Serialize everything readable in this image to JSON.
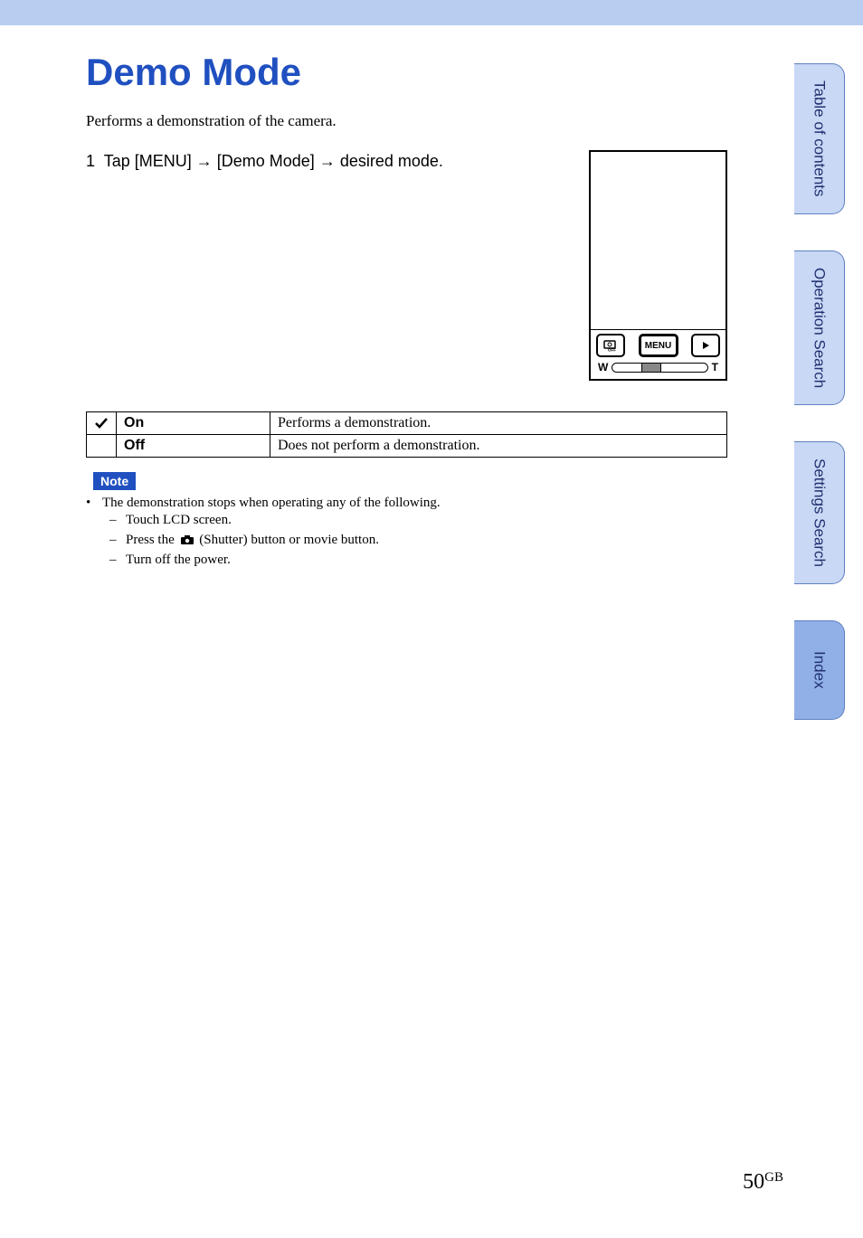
{
  "title": "Demo Mode",
  "intro": "Performs a demonstration of the camera.",
  "step": {
    "num": "1",
    "prefix": "Tap [MENU]",
    "mid": "[Demo Mode]",
    "suffix": "desired mode."
  },
  "camera": {
    "menu_label": "MENU",
    "zoom_w": "W",
    "zoom_t": "T"
  },
  "options": [
    {
      "checked": true,
      "name": "On",
      "desc": "Performs a demonstration."
    },
    {
      "checked": false,
      "name": "Off",
      "desc": "Does not perform a demonstration."
    }
  ],
  "note": {
    "label": "Note",
    "bullet": "The demonstration stops when operating any of the following.",
    "subs": [
      "Touch LCD screen.",
      "Press the |CAM| (Shutter) button or movie button.",
      "Turn off the power."
    ]
  },
  "tabs": {
    "toc": "Table of contents",
    "op": "Operation Search",
    "settings": "Settings Search",
    "index": "Index"
  },
  "footer": {
    "page": "50",
    "suffix": "GB"
  }
}
